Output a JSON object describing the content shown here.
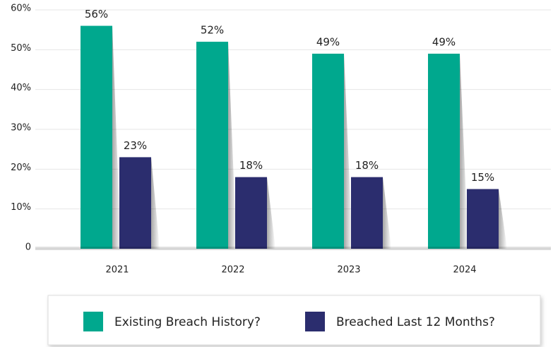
{
  "chart_data": {
    "type": "bar",
    "categories": [
      "2021",
      "2022",
      "2023",
      "2024"
    ],
    "series": [
      {
        "name": "Existing Breach History?",
        "color": "#00a88e",
        "values": [
          56,
          52,
          49,
          49
        ],
        "value_labels": [
          "56%",
          "52%",
          "49%",
          "49%"
        ]
      },
      {
        "name": "Breached Last 12 Months?",
        "color": "#2b2d6e",
        "values": [
          23,
          18,
          18,
          15
        ],
        "value_labels": [
          "23%",
          "18%",
          "18%",
          "15%"
        ]
      }
    ],
    "ylim": [
      0,
      60
    ],
    "yticks": [
      0,
      {
        "value": 10,
        "label": "10%"
      },
      {
        "value": 20,
        "label": "20%"
      },
      {
        "value": 30,
        "label": "30%"
      },
      {
        "value": 40,
        "label": "40%"
      },
      {
        "value": 50,
        "label": "50%"
      },
      {
        "value": 60,
        "label": "60%"
      }
    ],
    "grid": true
  }
}
